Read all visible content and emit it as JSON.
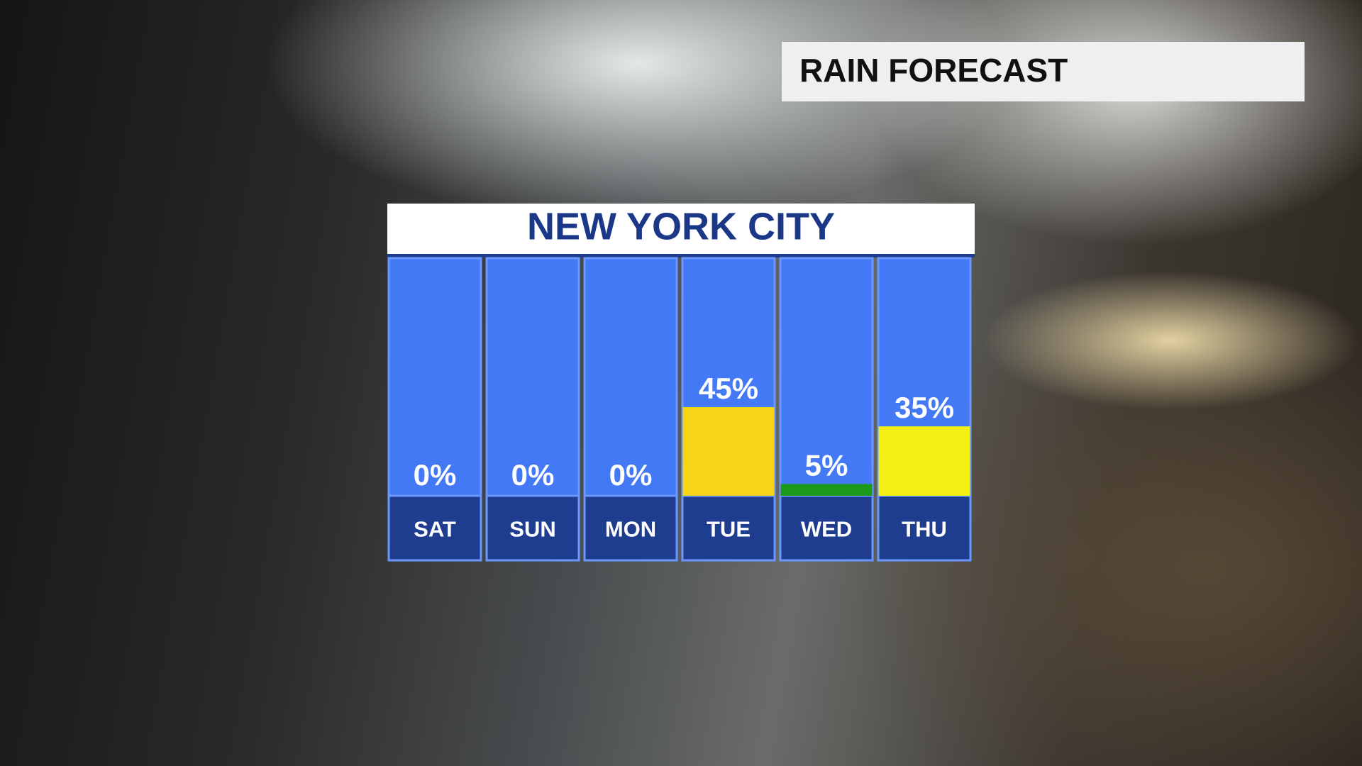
{
  "header": {
    "title": "RAIN FORECAST"
  },
  "chart_data": {
    "type": "bar",
    "title": "NEW YORK CITY",
    "categories": [
      "SAT",
      "SUN",
      "MON",
      "TUE",
      "WED",
      "THU"
    ],
    "values": [
      0,
      0,
      0,
      45,
      5,
      35
    ],
    "value_labels": [
      "0%",
      "0%",
      "0%",
      "45%",
      "5%",
      "35%"
    ],
    "colors": [
      "#ffffff",
      "#ffffff",
      "#ffffff",
      "#f8d416",
      "#1c9a1c",
      "#f4f016"
    ]
  }
}
